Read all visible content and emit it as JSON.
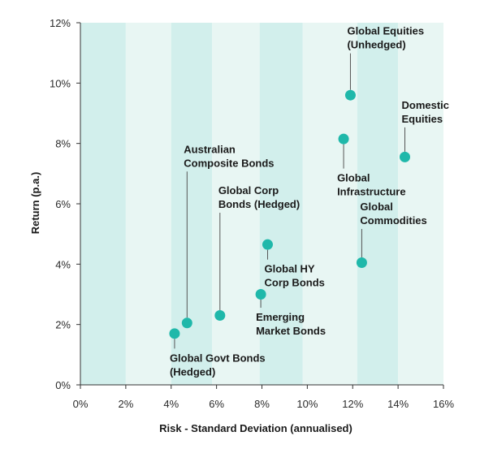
{
  "chart_data": {
    "type": "scatter",
    "title": "",
    "xlabel": "Risk - Standard Deviation (annualised)",
    "ylabel": "Return (p.a.)",
    "xlim": [
      0,
      16
    ],
    "ylim": [
      0,
      12
    ],
    "x_ticks": [
      "0%",
      "2%",
      "4%",
      "6%",
      "8%",
      "10%",
      "12%",
      "14%",
      "16%"
    ],
    "y_ticks": [
      "0%",
      "2%",
      "4%",
      "6%",
      "8%",
      "10%",
      "12%"
    ],
    "grid": false,
    "bands": [
      {
        "from": 0,
        "to": 2,
        "shade": "dark"
      },
      {
        "from": 2,
        "to": 4,
        "shade": "light"
      },
      {
        "from": 4,
        "to": 5.8,
        "shade": "dark"
      },
      {
        "from": 5.8,
        "to": 7.9,
        "shade": "light"
      },
      {
        "from": 7.9,
        "to": 9.8,
        "shade": "dark"
      },
      {
        "from": 9.8,
        "to": 12.2,
        "shade": "light"
      },
      {
        "from": 12.2,
        "to": 14,
        "shade": "dark"
      },
      {
        "from": 14,
        "to": 16,
        "shade": "light"
      }
    ],
    "points": [
      {
        "lines": [
          "Global Equities",
          "(Unhedged)"
        ],
        "x": 11.9,
        "y": 9.6,
        "label_pos": "above"
      },
      {
        "lines": [
          "Domestic",
          "Equities"
        ],
        "x": 14.3,
        "y": 7.55,
        "label_pos": "above"
      },
      {
        "lines": [
          "Global",
          "Infrastructure"
        ],
        "x": 11.6,
        "y": 8.15,
        "label_pos": "below"
      },
      {
        "lines": [
          "Australian",
          "Composite Bonds"
        ],
        "x": 4.7,
        "y": 2.05,
        "label_pos": "above"
      },
      {
        "lines": [
          "Global Corp",
          "Bonds (Hedged)"
        ],
        "x": 6.15,
        "y": 2.3,
        "label_pos": "above"
      },
      {
        "lines": [
          "Global HY",
          "Corp Bonds"
        ],
        "x": 8.25,
        "y": 4.65,
        "label_pos": "below"
      },
      {
        "lines": [
          "Global",
          "Commodities"
        ],
        "x": 12.4,
        "y": 4.05,
        "label_pos": "above"
      },
      {
        "lines": [
          "Emerging",
          "Market Bonds"
        ],
        "x": 7.95,
        "y": 3.0,
        "label_pos": "below"
      },
      {
        "lines": [
          "Global Govt Bonds",
          "(Hedged)"
        ],
        "x": 4.15,
        "y": 1.7,
        "label_pos": "below"
      }
    ]
  },
  "colors": {
    "band_dark": "#d2efec",
    "band_light": "#e8f6f3",
    "point": "#1fb8aa",
    "axis": "#333333"
  }
}
